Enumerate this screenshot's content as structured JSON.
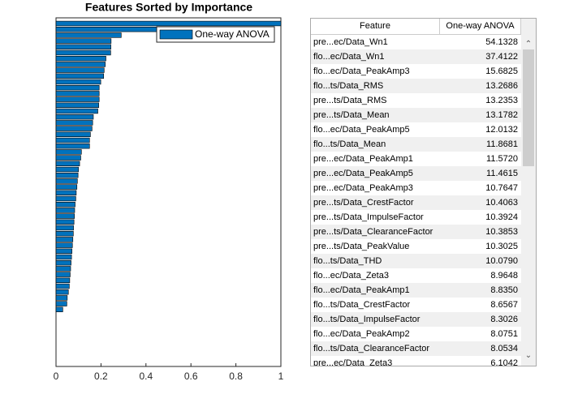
{
  "chart_data": {
    "type": "barh",
    "title": "Features Sorted by Importance",
    "categories": [
      null,
      null,
      null,
      null,
      null,
      null,
      null,
      null,
      null,
      null,
      null,
      null,
      null,
      null,
      null,
      null,
      null,
      null,
      null,
      null,
      null,
      null,
      null,
      null,
      null,
      null,
      null,
      null,
      null,
      null,
      null,
      null,
      null,
      null,
      null,
      null,
      null,
      null,
      null,
      null,
      null,
      null,
      null,
      null,
      null,
      null,
      null,
      null,
      null,
      null
    ],
    "series": [
      {
        "name": "One-way ANOVA",
        "color": "#0072bd",
        "values": [
          1.0,
          0.691,
          0.29,
          0.245,
          0.244,
          0.243,
          0.222,
          0.219,
          0.214,
          0.212,
          0.199,
          0.192,
          0.192,
          0.192,
          0.19,
          0.186,
          0.166,
          0.163,
          0.16,
          0.153,
          0.149,
          0.149,
          0.113,
          0.11,
          0.105,
          0.1,
          0.098,
          0.095,
          0.093,
          0.09,
          0.088,
          0.085,
          0.083,
          0.082,
          0.08,
          0.078,
          0.077,
          0.075,
          0.073,
          0.071,
          0.069,
          0.067,
          0.065,
          0.063,
          0.061,
          0.059,
          0.055,
          0.05,
          0.048,
          0.03
        ]
      }
    ],
    "xlim": [
      0,
      1
    ],
    "xticks": [
      0,
      0.2,
      0.4,
      0.6,
      0.8,
      1
    ],
    "legend": "northeast"
  },
  "table": {
    "columns": [
      "Feature",
      "One-way ANOVA"
    ],
    "rows": [
      [
        "pre...ec/Data_Wn1",
        "54.1328"
      ],
      [
        "flo...ec/Data_Wn1",
        "37.4122"
      ],
      [
        "flo...ec/Data_PeakAmp3",
        "15.6825"
      ],
      [
        "flo...ts/Data_RMS",
        "13.2686"
      ],
      [
        "pre...ts/Data_RMS",
        "13.2353"
      ],
      [
        "pre...ts/Data_Mean",
        "13.1782"
      ],
      [
        "flo...ec/Data_PeakAmp5",
        "12.0132"
      ],
      [
        "flo...ts/Data_Mean",
        "11.8681"
      ],
      [
        "pre...ec/Data_PeakAmp1",
        "11.5720"
      ],
      [
        "pre...ec/Data_PeakAmp5",
        "11.4615"
      ],
      [
        "pre...ec/Data_PeakAmp3",
        "10.7647"
      ],
      [
        "pre...ts/Data_CrestFactor",
        "10.4063"
      ],
      [
        "pre...ts/Data_ImpulseFactor",
        "10.3924"
      ],
      [
        "pre...ts/Data_ClearanceFactor",
        "10.3853"
      ],
      [
        "pre...ts/Data_PeakValue",
        "10.3025"
      ],
      [
        "flo...ts/Data_THD",
        "10.0790"
      ],
      [
        "flo...ec/Data_Zeta3",
        "8.9648"
      ],
      [
        "flo...ec/Data_PeakAmp1",
        "8.8350"
      ],
      [
        "flo...ts/Data_CrestFactor",
        "8.6567"
      ],
      [
        "flo...ts/Data_ImpulseFactor",
        "8.3026"
      ],
      [
        "flo...ec/Data_PeakAmp2",
        "8.0751"
      ],
      [
        "flo...ts/Data_ClearanceFactor",
        "8.0534"
      ],
      [
        "pre...ec/Data_Zeta3",
        "6.1042"
      ]
    ]
  }
}
